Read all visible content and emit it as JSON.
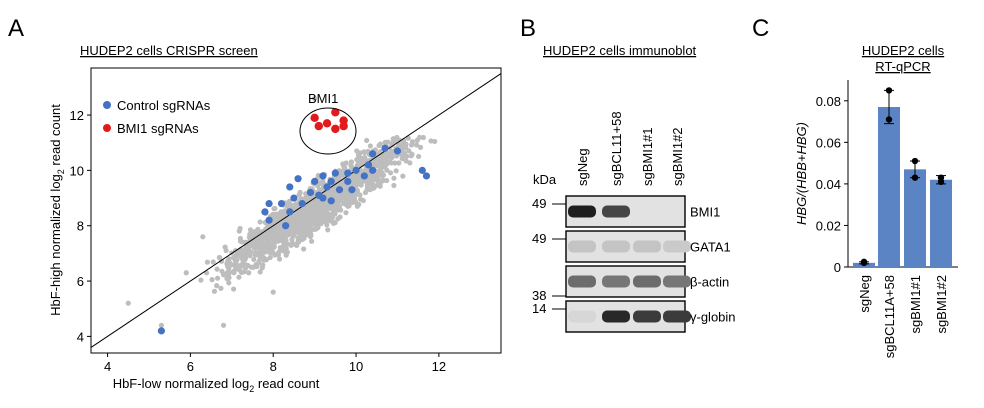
{
  "panels": {
    "a": {
      "letter": "A",
      "title": "HUDEP2 cells CRISPR screen",
      "ylabel_main": "HbF-high normalized log",
      "ylabel_sub": "2",
      "ylabel_end": " read count",
      "xlabel_main": "HbF-low normalized log",
      "xlabel_sub": "2",
      "xlabel_end": " read count",
      "legend": {
        "control_label": "Control sgRNAs",
        "bmi1_label": "BMI1 sgRNAs"
      },
      "annotation": "BMI1"
    },
    "b": {
      "letter": "B",
      "title": "HUDEP2 cells immunoblot",
      "kda_label": "kDa",
      "lanes": [
        "sgNeg",
        "sgBCL11+58",
        "sgBMI1#1",
        "sgBMI1#2"
      ],
      "blots": [
        {
          "protein": "BMI1",
          "marker": "49",
          "band_intensity": [
            1.0,
            0.8,
            0.0,
            0.0
          ]
        },
        {
          "protein": "GATA1",
          "marker": "49",
          "band_intensity": [
            0.15,
            0.15,
            0.15,
            0.12
          ]
        },
        {
          "protein": "β-actin",
          "marker": "38",
          "band_intensity": [
            0.6,
            0.55,
            0.6,
            0.55
          ]
        },
        {
          "protein": "γ-globin",
          "marker": "14",
          "band_intensity": [
            0.05,
            0.95,
            0.85,
            0.85
          ]
        }
      ]
    },
    "c": {
      "letter": "C",
      "title_line1": "HUDEP2 cells",
      "title_line2": "RT-qPCR"
    }
  },
  "colors": {
    "control": "#4472c4",
    "bmi1": "#e31a1c",
    "background_points": "#bdbdbd",
    "bar": "#5b84c4"
  },
  "chart_data": [
    {
      "type": "scatter",
      "title": "HUDEP2 cells CRISPR screen",
      "xlabel": "HbF-low normalized log2 read count",
      "ylabel": "HbF-high normalized log2 read count",
      "xlim": [
        3.6,
        13.5
      ],
      "ylim": [
        3.4,
        13.7
      ],
      "xticks": [
        4,
        6,
        8,
        10,
        12
      ],
      "yticks": [
        4,
        6,
        8,
        10,
        12
      ],
      "diagonal": true,
      "series": [
        {
          "name": "Control sgRNAs",
          "points": [
            [
              5.3,
              4.2
            ],
            [
              11.7,
              9.8
            ],
            [
              11.6,
              10.0
            ],
            [
              11.0,
              10.7
            ],
            [
              10.3,
              10.2
            ],
            [
              10.4,
              10.0
            ],
            [
              10.0,
              10.0
            ],
            [
              9.8,
              9.9
            ],
            [
              9.5,
              9.9
            ],
            [
              9.2,
              9.8
            ],
            [
              9.8,
              9.6
            ],
            [
              9.4,
              9.6
            ],
            [
              9.0,
              9.6
            ],
            [
              8.6,
              9.7
            ],
            [
              8.4,
              9.4
            ],
            [
              8.9,
              9.2
            ],
            [
              9.1,
              9.1
            ],
            [
              9.3,
              9.4
            ],
            [
              9.6,
              9.3
            ],
            [
              9.2,
              9.0
            ],
            [
              9.4,
              8.9
            ],
            [
              8.7,
              8.8
            ],
            [
              8.4,
              8.5
            ],
            [
              8.5,
              9.0
            ],
            [
              8.2,
              8.8
            ],
            [
              7.9,
              8.8
            ],
            [
              7.8,
              8.5
            ],
            [
              7.9,
              8.2
            ],
            [
              8.3,
              8.0
            ],
            [
              9.9,
              9.3
            ],
            [
              10.2,
              9.8
            ],
            [
              10.4,
              10.6
            ],
            [
              10.7,
              10.8
            ]
          ]
        },
        {
          "name": "BMI1 sgRNAs",
          "points": [
            [
              9.0,
              11.9
            ],
            [
              9.3,
              11.7
            ],
            [
              9.5,
              12.1
            ],
            [
              9.7,
              11.8
            ],
            [
              9.5,
              11.5
            ],
            [
              9.1,
              11.6
            ],
            [
              9.7,
              11.6
            ]
          ]
        }
      ]
    },
    {
      "type": "bar",
      "ylabel": "HBG/(HBB+HBG)",
      "categories": [
        "sgNeg",
        "sgBCL11A+58",
        "sgBMI1#1",
        "sgBMI1#2"
      ],
      "values": [
        0.002,
        0.077,
        0.047,
        0.042
      ],
      "errors": [
        0.0005,
        0.008,
        0.004,
        0.002
      ],
      "replicates": [
        [
          0.0025,
          0.002
        ],
        [
          0.085,
          0.071
        ],
        [
          0.051,
          0.043
        ],
        [
          0.043,
          0.041
        ]
      ],
      "ylim": [
        0,
        0.09
      ],
      "yticks": [
        0,
        0.02,
        0.04,
        0.06,
        0.08
      ],
      "yticklabels": [
        "0",
        "0.02",
        "0.04",
        "0.06",
        "0.08"
      ]
    }
  ]
}
